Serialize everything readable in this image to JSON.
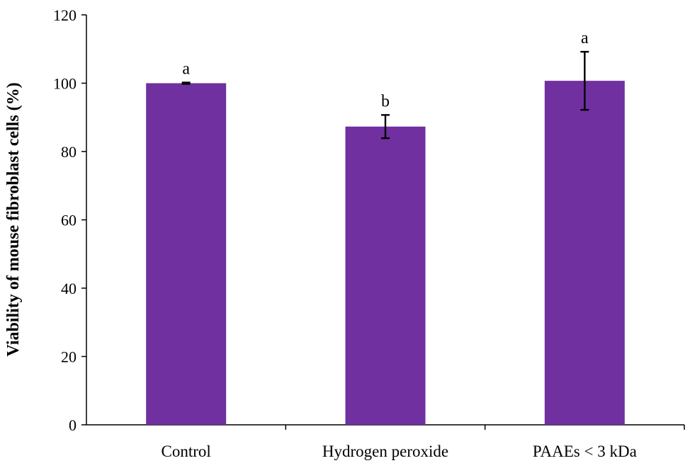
{
  "chart_data": {
    "type": "bar",
    "categories": [
      "Control",
      "Hydrogen peroxide",
      "PAAEs < 3 kDa"
    ],
    "series": [
      {
        "values": [
          100,
          87.3,
          100.7
        ],
        "errors": [
          0.2,
          3.4,
          8.5
        ],
        "color": "#7030A0"
      }
    ],
    "significance_labels": [
      "a",
      "b",
      "a"
    ],
    "xlabel": "",
    "ylabel": "Viability of mouse fibroblast  cells (%)",
    "ylim": [
      0,
      120
    ],
    "yticks": [
      0,
      20,
      40,
      60,
      80,
      100,
      120
    ],
    "grid": false,
    "legend": "none"
  }
}
